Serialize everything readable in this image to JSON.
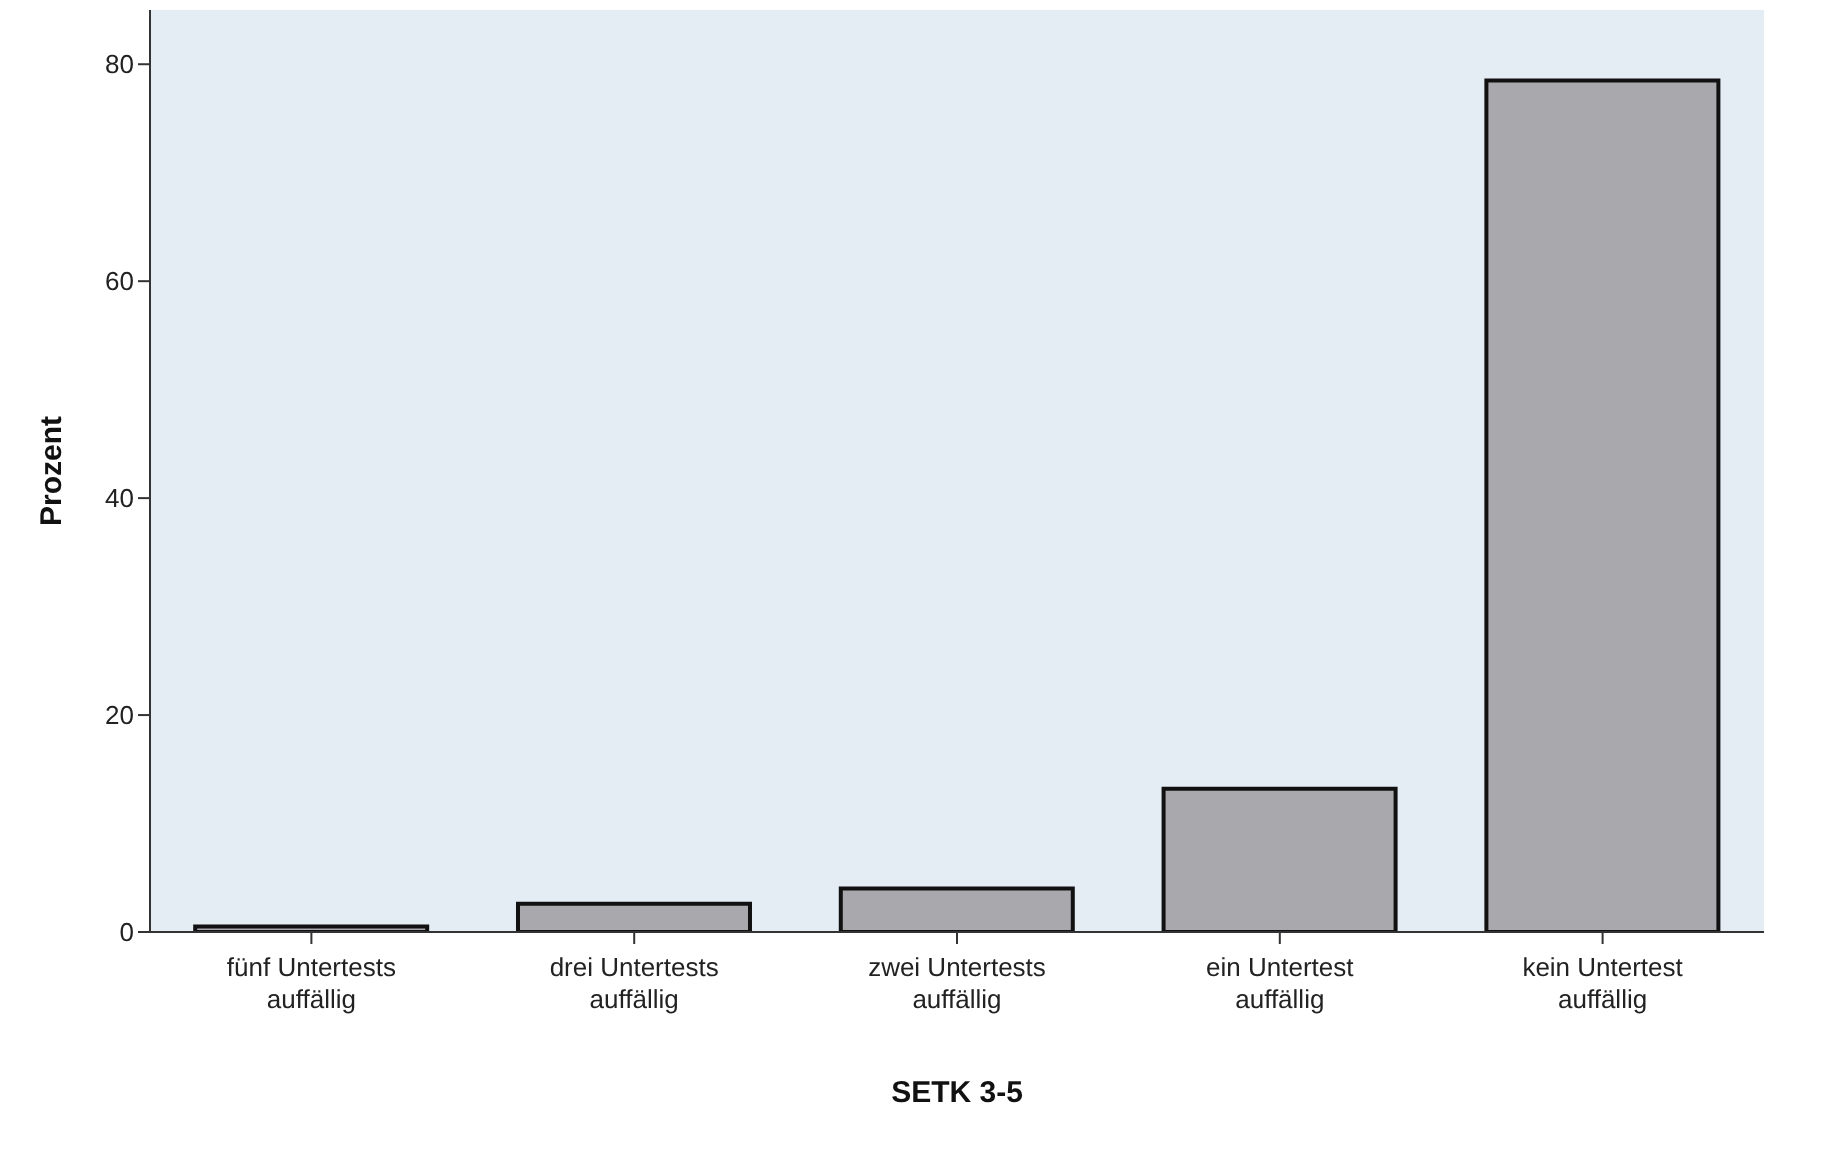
{
  "chart_data": {
    "type": "bar",
    "xlabel": "SETK 3-5",
    "ylabel": "Prozent",
    "categories": [
      "fünf Untertests auffällig",
      "drei Untertests auffällig",
      "zwei Untertests auffällig",
      "ein Untertest auffällig",
      "kein Untertest auffällig"
    ],
    "values": [
      0.5,
      2.6,
      4.0,
      13.2,
      78.5
    ],
    "color": "#a9a8ad",
    "ylim": [
      0,
      85
    ],
    "yticks": [
      0,
      20,
      40,
      60,
      80
    ],
    "grid": false,
    "legend": false
  }
}
